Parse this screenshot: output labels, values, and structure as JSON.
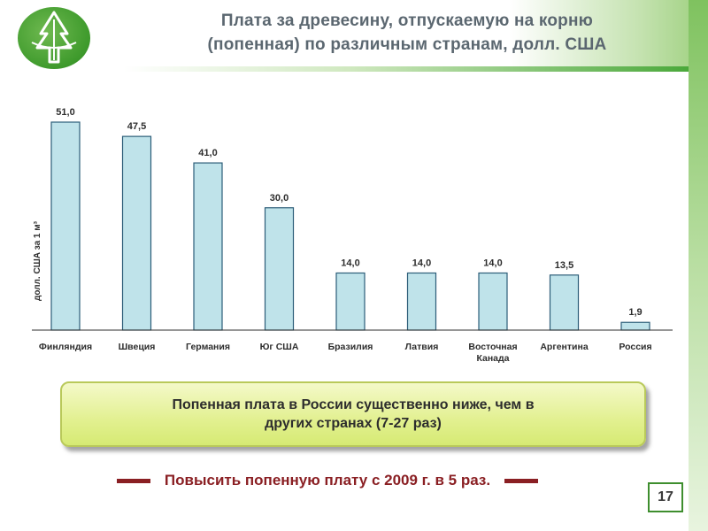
{
  "slide": {
    "title_line1": "Плата за древесину, отпускаемую на корню",
    "title_line2": "(попенная) по различным странам, долл. США",
    "callout_text": "Попенная плата в России существенно ниже, чем в других странах (7-27 раз)",
    "action_text": "Повысить попенную плату с 2009 г. в 5 раз.",
    "page_number": "17",
    "logo_icon": "tree-logo-icon"
  },
  "colors": {
    "bar_fill": "#bfe3ea",
    "bar_stroke": "#2c5d78",
    "title_color": "#5b6770",
    "accent_green": "#3e9a2c",
    "action_color": "#8a1f23",
    "callout_fill": "#e2f090"
  },
  "chart_data": {
    "type": "bar",
    "ylabel": "долл. США за 1 м³",
    "categories": [
      [
        "Финляндия"
      ],
      [
        "Швеция"
      ],
      [
        "Германия"
      ],
      [
        "Юг США"
      ],
      [
        "Бразилия"
      ],
      [
        "Латвия"
      ],
      [
        "Восточная",
        "Канада"
      ],
      [
        "Аргентина"
      ],
      [
        "Россия"
      ]
    ],
    "values": [
      51.0,
      47.5,
      41.0,
      30.0,
      14.0,
      14.0,
      14.0,
      13.5,
      1.9
    ],
    "value_labels": [
      "51,0",
      "47,5",
      "41,0",
      "30,0",
      "14,0",
      "14,0",
      "14,0",
      "13,5",
      "1,9"
    ],
    "ylim": [
      0,
      51
    ],
    "grid": false,
    "legend": "none"
  }
}
